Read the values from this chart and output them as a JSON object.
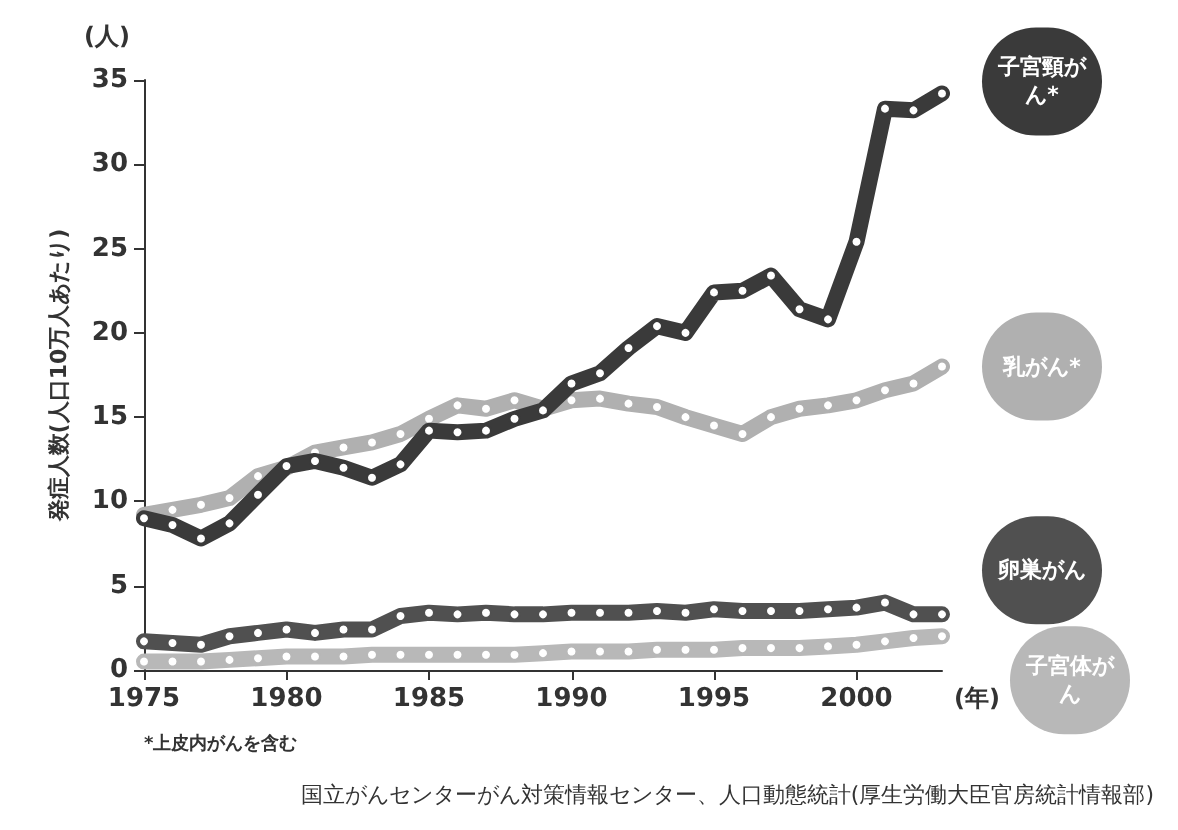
{
  "chart_data": {
    "type": "line",
    "ylabel": "発症人数(人口10万人あたり)",
    "xlabel": "(年)",
    "x": [
      1975,
      1976,
      1977,
      1978,
      1979,
      1980,
      1981,
      1982,
      1983,
      1984,
      1985,
      1986,
      1987,
      1988,
      1989,
      1990,
      1991,
      1992,
      1993,
      1994,
      1995,
      1996,
      1997,
      1998,
      1999,
      2000,
      2001,
      2002,
      2003
    ],
    "xlim": [
      1975,
      2003
    ],
    "xticks": [
      1975,
      1980,
      1985,
      1990,
      1995,
      2000
    ],
    "ylim": [
      0,
      35
    ],
    "yticks": [
      0,
      5,
      10,
      15,
      20,
      25,
      30,
      35
    ],
    "grid": false,
    "legend": false,
    "marker": "circle",
    "series": [
      {
        "name": "子宮頸がん*",
        "color": "#3a3a3a",
        "values": [
          9.0,
          8.6,
          7.8,
          8.7,
          10.4,
          12.1,
          12.4,
          12.0,
          11.4,
          12.2,
          14.2,
          14.1,
          14.2,
          14.9,
          15.4,
          17.0,
          17.6,
          19.1,
          20.4,
          20.0,
          22.4,
          22.5,
          23.4,
          21.4,
          20.8,
          25.4,
          33.3,
          33.2,
          34.2
        ]
      },
      {
        "name": "乳がん*",
        "color": "#b0b0b0",
        "values": [
          9.2,
          9.5,
          9.8,
          10.2,
          11.5,
          12.0,
          12.9,
          13.2,
          13.5,
          14.0,
          14.9,
          15.7,
          15.5,
          16.0,
          15.5,
          16.0,
          16.1,
          15.8,
          15.6,
          15.0,
          14.5,
          14.0,
          15.0,
          15.5,
          15.7,
          16.0,
          16.6,
          17.0,
          18.0
        ]
      },
      {
        "name": "卵巣がん",
        "color": "#505050",
        "values": [
          1.7,
          1.6,
          1.5,
          2.0,
          2.2,
          2.4,
          2.2,
          2.4,
          2.4,
          3.2,
          3.4,
          3.3,
          3.4,
          3.3,
          3.3,
          3.4,
          3.4,
          3.4,
          3.5,
          3.4,
          3.6,
          3.5,
          3.5,
          3.5,
          3.6,
          3.7,
          4.0,
          3.3,
          3.3
        ]
      },
      {
        "name": "子宮体がん",
        "color": "#b8b8b8",
        "values": [
          0.5,
          0.5,
          0.5,
          0.6,
          0.7,
          0.8,
          0.8,
          0.8,
          0.9,
          0.9,
          0.9,
          0.9,
          0.9,
          0.9,
          1.0,
          1.1,
          1.1,
          1.1,
          1.2,
          1.2,
          1.2,
          1.3,
          1.3,
          1.3,
          1.4,
          1.5,
          1.7,
          1.9,
          2.0
        ]
      }
    ],
    "annotations": [
      "(人)",
      "*上皮内がんを含む",
      "国立がんセンターがん対策情報センター、人口動態統計(厚生労働大臣官房統計情報部)"
    ]
  }
}
